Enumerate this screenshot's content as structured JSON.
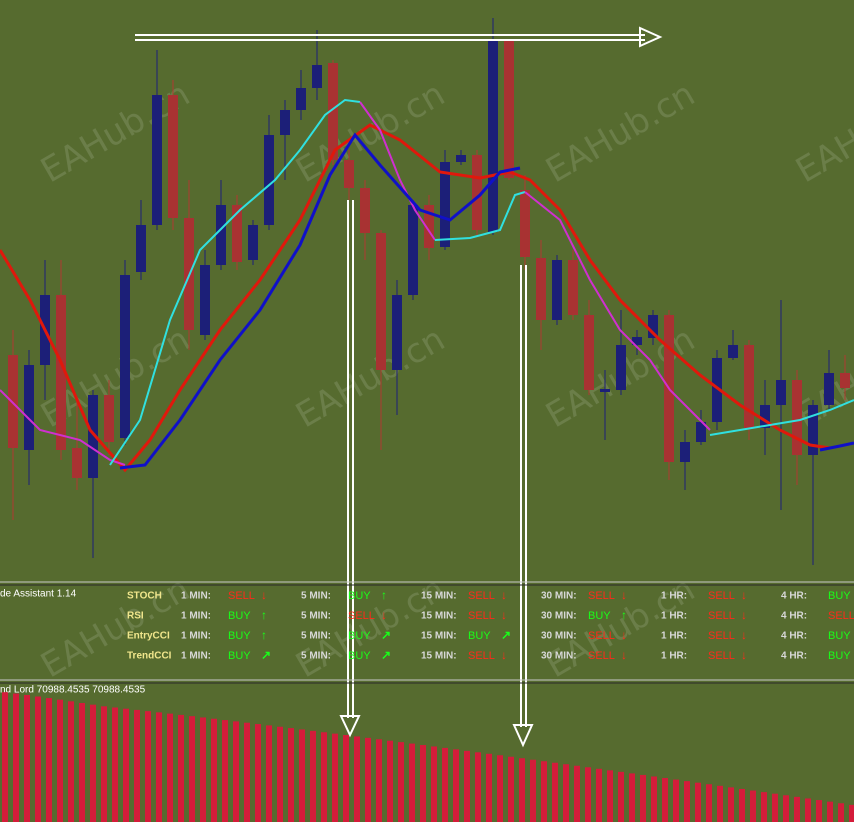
{
  "watermark": "EAHub.cn",
  "panel": {
    "title": "de Assistant 1.14",
    "timeframes": [
      "1 MIN:",
      "5 MIN:",
      "15 MIN:",
      "30 MIN:",
      "1 HR:",
      "4 HR:"
    ],
    "rows": [
      {
        "name": "STOCH",
        "cells": [
          {
            "signal": "SELL",
            "arrow": "↓",
            "color": "#ff2a1a"
          },
          {
            "signal": "BUY",
            "arrow": "↑",
            "color": "#19ff19"
          },
          {
            "signal": "SELL",
            "arrow": "↓",
            "color": "#ff2a1a"
          },
          {
            "signal": "SELL",
            "arrow": "↓",
            "color": "#ff2a1a"
          },
          {
            "signal": "SELL",
            "arrow": "↓",
            "color": "#ff2a1a"
          },
          {
            "signal": "BUY",
            "arrow": "",
            "color": "#19ff19"
          }
        ]
      },
      {
        "name": "RSI",
        "cells": [
          {
            "signal": "BUY",
            "arrow": "↑",
            "color": "#19ff19"
          },
          {
            "signal": "SELL",
            "arrow": "↓",
            "color": "#ff2a1a"
          },
          {
            "signal": "SELL",
            "arrow": "↓",
            "color": "#ff2a1a"
          },
          {
            "signal": "BUY",
            "arrow": "↑",
            "color": "#19ff19"
          },
          {
            "signal": "SELL",
            "arrow": "↓",
            "color": "#ff2a1a"
          },
          {
            "signal": "SELL",
            "arrow": "",
            "color": "#ff2a1a"
          }
        ]
      },
      {
        "name": "EntryCCI",
        "cells": [
          {
            "signal": "BUY",
            "arrow": "↑",
            "color": "#19ff19"
          },
          {
            "signal": "BUY",
            "arrow": "↗",
            "color": "#19ff19"
          },
          {
            "signal": "BUY",
            "arrow": "↗",
            "color": "#19ff19"
          },
          {
            "signal": "SELL",
            "arrow": "↓",
            "color": "#ff2a1a"
          },
          {
            "signal": "SELL",
            "arrow": "↓",
            "color": "#ff2a1a"
          },
          {
            "signal": "BUY",
            "arrow": "",
            "color": "#19ff19"
          }
        ]
      },
      {
        "name": "TrendCCI",
        "cells": [
          {
            "signal": "BUY",
            "arrow": "↗",
            "color": "#19ff19"
          },
          {
            "signal": "BUY",
            "arrow": "↗",
            "color": "#19ff19"
          },
          {
            "signal": "SELL",
            "arrow": "↓",
            "color": "#ff2a1a"
          },
          {
            "signal": "SELL",
            "arrow": "↓",
            "color": "#ff2a1a"
          },
          {
            "signal": "SELL",
            "arrow": "↓",
            "color": "#ff2a1a"
          },
          {
            "signal": "BUY",
            "arrow": "",
            "color": "#19ff19"
          }
        ]
      }
    ]
  },
  "indicator_label": "nd Lord 70988.4535 70988.4535"
}
